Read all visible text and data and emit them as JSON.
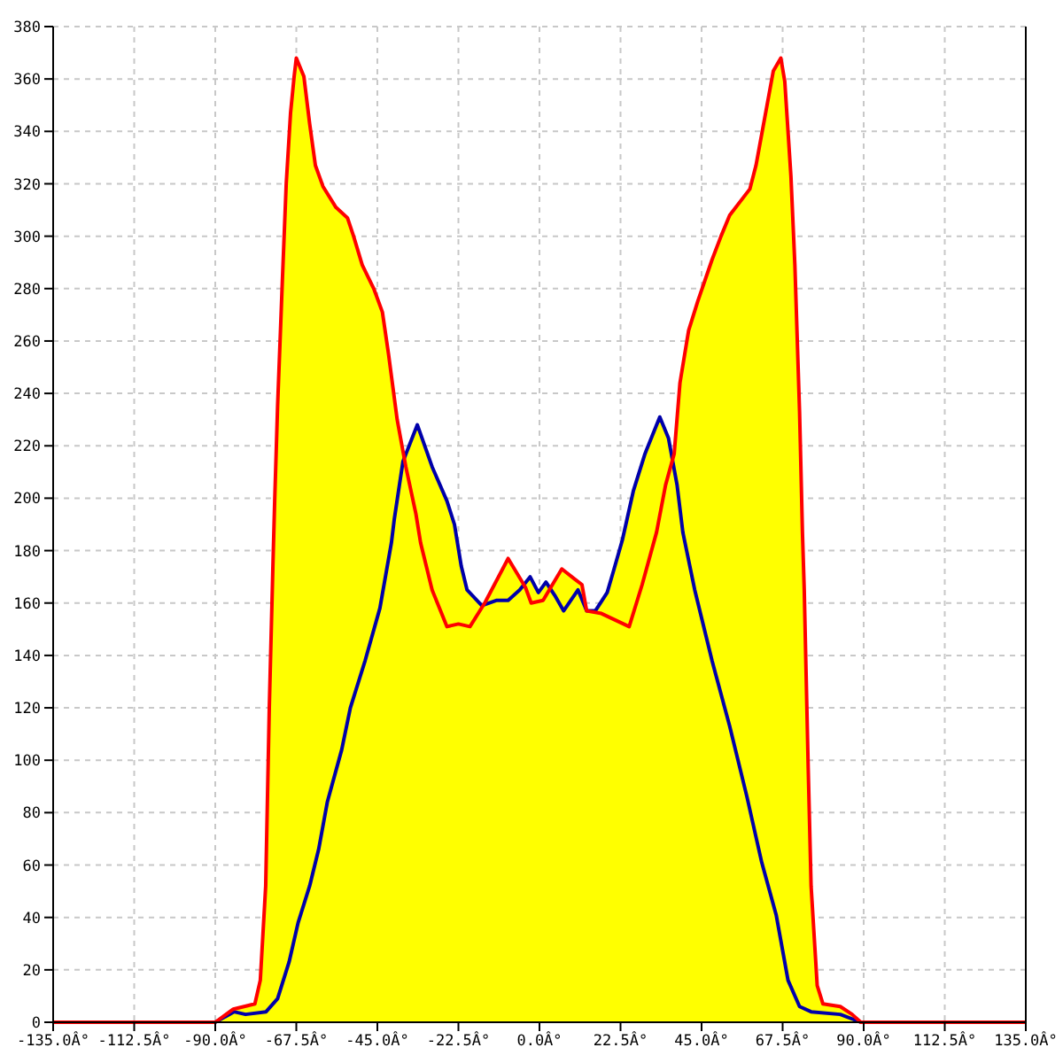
{
  "chart_data": {
    "type": "line",
    "xlim": [
      -135,
      135
    ],
    "xticks": [
      {
        "value": -135,
        "label": "-135.0Â°"
      },
      {
        "value": -112.5,
        "label": "-112.5Â°"
      },
      {
        "value": -90,
        "label": "-90.0Â°"
      },
      {
        "value": -67.5,
        "label": "-67.5Â°"
      },
      {
        "value": -45,
        "label": "-45.0Â°"
      },
      {
        "value": -22.5,
        "label": "-22.5Â°"
      },
      {
        "value": 0,
        "label": "0.0Â°"
      },
      {
        "value": 22.5,
        "label": "22.5Â°"
      },
      {
        "value": 45,
        "label": "45.0Â°"
      },
      {
        "value": 67.5,
        "label": "67.5Â°"
      },
      {
        "value": 90,
        "label": "90.0Â°"
      },
      {
        "value": 112.5,
        "label": "112.5Â°"
      },
      {
        "value": 135,
        "label": "135.0Â°"
      }
    ],
    "ylim": [
      0,
      380
    ],
    "yticks": [
      0,
      20,
      40,
      60,
      80,
      100,
      120,
      140,
      160,
      180,
      200,
      220,
      240,
      260,
      280,
      300,
      320,
      340,
      360,
      380
    ],
    "grid": true,
    "series": [
      {
        "type": "area",
        "color": "#ffff00",
        "x": [
          -90,
          -85,
          -79,
          -77.5,
          -76,
          -75,
          -74,
          -73.5,
          -72.7,
          -71.4,
          -70.3,
          -69.1,
          -68.1,
          -67.5,
          -65.4,
          -63.8,
          -62.2,
          -60.1,
          -56.5,
          -53.3,
          -51.6,
          -49.2,
          -46,
          -43.6,
          -41.9,
          -39.5,
          -37.5,
          -33.9,
          -29.8,
          -25.7,
          -23.6,
          -21.7,
          -20.1,
          -15.5,
          -15.2,
          -8.7,
          -4.2,
          -2.6,
          -0.3,
          1.8,
          3,
          6.2,
          9.9,
          11.8,
          13.1,
          15.5,
          18.8,
          20.5,
          23,
          26.1,
          29.3,
          33.4,
          35.8,
          36.9,
          37.4,
          39,
          41.4,
          43.9,
          47.9,
          50.4,
          52.8,
          58.4,
          60.1,
          62.5,
          64.9,
          67,
          68.1,
          69.8,
          70.9,
          72.2,
          73,
          73.5,
          74.6,
          75.4,
          77.1,
          78.7,
          83.5,
          86.8,
          89.2
        ],
        "values": [
          0,
          5,
          7,
          16,
          52,
          120,
          174,
          199,
          235,
          282,
          320,
          347,
          361,
          368,
          361,
          343,
          327,
          319,
          311,
          307,
          300,
          289,
          280,
          271,
          255,
          230,
          215,
          228,
          212,
          199,
          190,
          174,
          165,
          159,
          160,
          177,
          167,
          170,
          164,
          168,
          165,
          173,
          169,
          167,
          157,
          157,
          164,
          172,
          184,
          203,
          217,
          231,
          223,
          215,
          217,
          244,
          264,
          275,
          291,
          300,
          308,
          318,
          327,
          345,
          363,
          368,
          359,
          323,
          289,
          233,
          187,
          165,
          97,
          52,
          14,
          7,
          6,
          3,
          0
        ]
      },
      {
        "color": "#0000aa",
        "x": [
          -90,
          -84.8,
          -81.6,
          -75.9,
          -72.7,
          -69.5,
          -67,
          -63.8,
          -61.3,
          -58.9,
          -54.9,
          -52.5,
          -48.4,
          -44.3,
          -41.1,
          -40.3,
          -37.9,
          -33.9,
          -29.8,
          -25.7,
          -23.6,
          -21.7,
          -20.1,
          -16,
          -12,
          -8.7,
          -5.5,
          -2.6,
          -0.3,
          1.8,
          4.2,
          6.7,
          10.7,
          13.1,
          15.5,
          18.8,
          20.5,
          23,
          26.1,
          29.3,
          33.4,
          35.8,
          38.2,
          39.8,
          43.1,
          47.9,
          52.8,
          57.6,
          61.7,
          65.7,
          69,
          72.2,
          75.4,
          83.5,
          89.2
        ],
        "values": [
          0,
          4,
          3,
          4,
          9,
          23,
          38,
          52,
          66,
          84,
          104,
          120,
          138,
          158,
          183,
          192,
          214,
          228,
          212,
          199,
          190,
          174,
          165,
          159,
          161,
          161,
          165,
          170,
          164,
          168,
          163,
          157,
          165,
          157,
          157,
          164,
          172,
          184,
          203,
          217,
          231,
          223,
          205,
          187,
          165,
          138,
          113,
          86,
          61,
          41,
          16,
          6,
          4,
          3,
          0
        ]
      },
      {
        "color": "#ff0000",
        "x": [
          -135,
          -90,
          -85,
          -79,
          -77.5,
          -76,
          -75,
          -74,
          -73.5,
          -72.7,
          -71.4,
          -70.3,
          -69.1,
          -68.1,
          -67.5,
          -65.4,
          -63.8,
          -62.2,
          -60.1,
          -56.5,
          -53.3,
          -51.6,
          -49.2,
          -46,
          -43.6,
          -41.9,
          -39.5,
          -37.1,
          -34.3,
          -33,
          -29.8,
          -25.7,
          -22.5,
          -19.3,
          -15.2,
          -8.7,
          -3.9,
          -2.3,
          1,
          6.2,
          9.9,
          11.8,
          13.1,
          17.2,
          24.9,
          28.5,
          32.5,
          35,
          37.4,
          39,
          41.4,
          43.9,
          47.9,
          50.4,
          52.8,
          58.4,
          60.1,
          62.5,
          64.9,
          67,
          68.1,
          69.8,
          70.9,
          72.2,
          73,
          73.5,
          74.6,
          75.4,
          77.1,
          78.7,
          83.5,
          86.8,
          89.2,
          135
        ],
        "values": [
          0,
          0,
          5,
          7,
          16,
          52,
          120,
          174,
          199,
          235,
          282,
          320,
          347,
          361,
          368,
          361,
          343,
          327,
          319,
          311,
          307,
          300,
          289,
          280,
          271,
          255,
          230,
          212,
          194,
          183,
          165,
          151,
          152,
          151,
          160,
          177,
          166,
          160,
          161,
          173,
          169,
          167,
          157,
          156,
          151,
          167,
          187,
          205,
          217,
          244,
          264,
          275,
          291,
          300,
          308,
          318,
          327,
          345,
          363,
          368,
          359,
          323,
          289,
          233,
          187,
          165,
          97,
          52,
          14,
          7,
          6,
          3,
          0,
          0
        ]
      }
    ]
  }
}
